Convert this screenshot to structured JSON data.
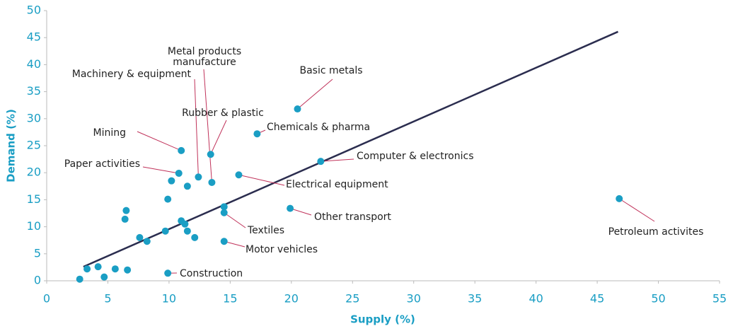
{
  "chart_data": {
    "type": "scatter",
    "x_label": "Supply (%)",
    "y_label": "Demand (%)",
    "xlim": [
      0,
      55
    ],
    "xticks": [
      0,
      5,
      10,
      15,
      20,
      25,
      30,
      35,
      40,
      45,
      50,
      55
    ],
    "ylim": [
      0,
      50
    ],
    "yticks": [
      0,
      5,
      10,
      15,
      20,
      25,
      30,
      35,
      40,
      45,
      50
    ],
    "color": "#1a9ec4",
    "series": [
      {
        "x": [
          20.5,
          17.2,
          22.4,
          15.7,
          19.9,
          46.8,
          14.5,
          14.5,
          9.9,
          11.0,
          10.8,
          12.4,
          13.5,
          13.4,
          10.2,
          11.5,
          9.9,
          6.5,
          6.4,
          11.0,
          11.3,
          9.7,
          11.5,
          7.6,
          8.2,
          12.1,
          3.3,
          4.2,
          5.6,
          6.6,
          4.7,
          2.7,
          14.5
        ],
        "y": [
          31.8,
          27.2,
          22.1,
          19.6,
          13.4,
          15.2,
          12.6,
          7.3,
          1.4,
          24.1,
          19.9,
          19.2,
          18.2,
          23.4,
          18.5,
          17.5,
          15.1,
          13.0,
          11.4,
          11.1,
          10.5,
          9.2,
          9.2,
          8.0,
          7.3,
          8.0,
          2.2,
          2.6,
          2.2,
          2.0,
          0.7,
          0.3,
          13.7
        ]
      }
    ],
    "trend_line": {
      "x": [
        3.0,
        46.7
      ],
      "y": [
        2.6,
        46.1
      ],
      "color": "#2b2d4f"
    },
    "annotations": [
      {
        "text": "Basic metals",
        "index": 0
      },
      {
        "text": "Chemicals &  pharma",
        "index": 1
      },
      {
        "text": "Computer & electronics",
        "index": 2
      },
      {
        "text": "Electrical equipment",
        "index": 3
      },
      {
        "text": "Other transport",
        "index": 4
      },
      {
        "text": "Petroleum activites",
        "index": 5
      },
      {
        "text": "Textiles",
        "index": 6
      },
      {
        "text": "Motor vehicles",
        "index": 7
      },
      {
        "text": "Construction",
        "index": 8
      },
      {
        "text": "Mining",
        "index": 9
      },
      {
        "text": "Paper activities",
        "index": 10
      },
      {
        "text": "Machinery & equipment",
        "index": 11
      },
      {
        "text": [
          "Metal products",
          "manufacture"
        ],
        "index": 12
      },
      {
        "text": "Rubber & plastic",
        "index": 13
      }
    ]
  }
}
